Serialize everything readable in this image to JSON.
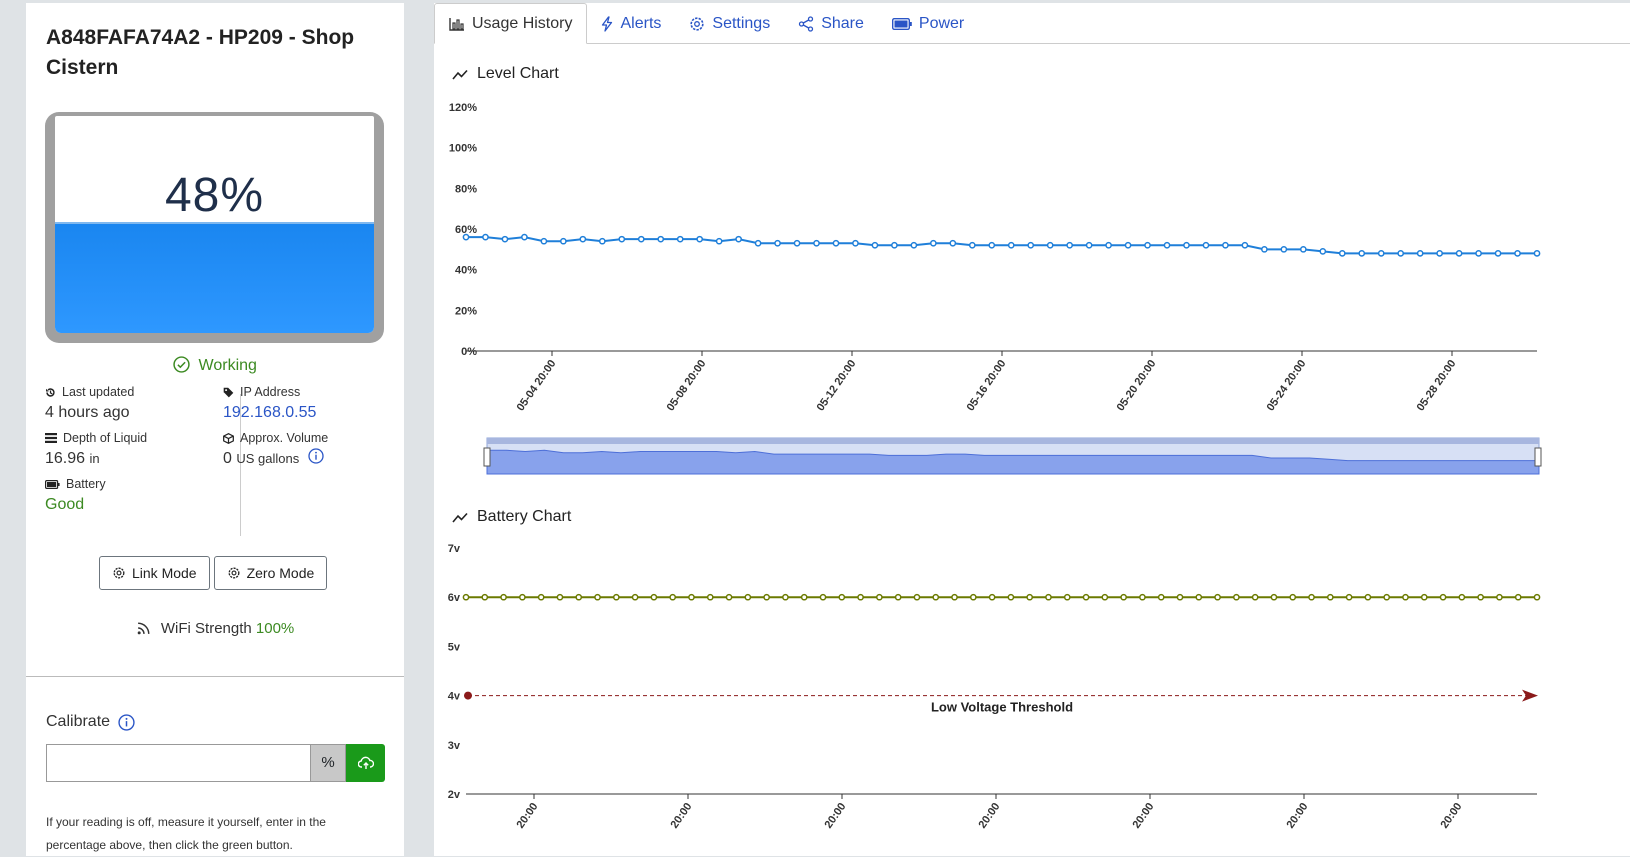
{
  "device": {
    "title": "A848FAFA74A2 - HP209 - Shop Cistern",
    "level_percent": 48,
    "level_text": "48%",
    "status": "Working"
  },
  "info": {
    "last_updated_label": "Last updated",
    "last_updated_value": "4 hours ago",
    "ip_label": "IP Address",
    "ip_value": "192.168.0.55",
    "depth_label": "Depth of Liquid",
    "depth_value": "16.96",
    "depth_unit": "in",
    "volume_label": "Approx. Volume",
    "volume_value": "0",
    "volume_unit": "US gallons",
    "battery_label": "Battery",
    "battery_value": "Good"
  },
  "buttons": {
    "link_mode": "Link Mode",
    "zero_mode": "Zero Mode"
  },
  "wifi": {
    "label": "WiFi Strength",
    "value": "100%"
  },
  "calibrate": {
    "label": "Calibrate",
    "input_value": "",
    "unit": "%",
    "help": "If your reading is off, measure it yourself, enter in the percentage above, then click the green button."
  },
  "tabs": [
    {
      "label": "Usage History",
      "icon": "bar-chart-icon",
      "active": true
    },
    {
      "label": "Alerts",
      "icon": "lightning-icon"
    },
    {
      "label": "Settings",
      "icon": "gear-icon"
    },
    {
      "label": "Share",
      "icon": "share-icon"
    },
    {
      "label": "Power",
      "icon": "battery-icon"
    }
  ],
  "colors": {
    "level_line": "#1f7fd9",
    "battery_line": "#6b7a00",
    "threshold": "#8b1a1a",
    "link": "#2a55c6",
    "good": "#3c8a22",
    "accent_green": "#1a9a1a"
  },
  "chart_data": [
    {
      "type": "line",
      "title": "Level Chart",
      "ylim": [
        0,
        120
      ],
      "y_ticks": [
        "0%",
        "20%",
        "40%",
        "60%",
        "80%",
        "100%",
        "120%"
      ],
      "x_ticks": [
        "05-04 20:00",
        "05-08 20:00",
        "05-12 20:00",
        "05-16 20:00",
        "05-20 20:00",
        "05-24 20:00",
        "05-28 20:00"
      ],
      "grid": false,
      "series": [
        {
          "values": [
            56,
            56,
            55,
            56,
            54,
            54,
            55,
            54,
            55,
            55,
            55,
            55,
            55,
            54,
            55,
            53,
            53,
            53,
            53,
            53,
            53,
            52,
            52,
            52,
            53,
            53,
            52,
            52,
            52,
            52,
            52,
            52,
            52,
            52,
            52,
            52,
            52,
            52,
            52,
            52,
            52,
            50,
            50,
            50,
            49,
            48,
            48,
            48,
            48,
            48,
            48,
            48,
            48,
            48,
            48,
            48
          ]
        }
      ]
    },
    {
      "type": "line",
      "title": "Battery Chart",
      "ylim": [
        2,
        7
      ],
      "y_ticks": [
        "2v",
        "3v",
        "4v",
        "5v",
        "6v",
        "7v"
      ],
      "x_ticks": [
        "20:00",
        "20:00",
        "20:00",
        "20:00",
        "20:00",
        "20:00",
        "20:00"
      ],
      "grid": false,
      "series": [
        {
          "values": [
            6,
            6,
            6,
            6,
            6,
            6,
            6,
            6,
            6,
            6,
            6,
            6,
            6,
            6,
            6,
            6,
            6,
            6,
            6,
            6,
            6,
            6,
            6,
            6,
            6,
            6,
            6,
            6,
            6,
            6,
            6,
            6,
            6,
            6,
            6,
            6,
            6,
            6,
            6,
            6,
            6,
            6,
            6,
            6,
            6,
            6,
            6,
            6,
            6,
            6,
            6,
            6,
            6,
            6,
            6,
            6,
            6,
            6
          ]
        }
      ],
      "threshold": {
        "value": 4,
        "label": "Low Voltage Threshold"
      }
    }
  ]
}
